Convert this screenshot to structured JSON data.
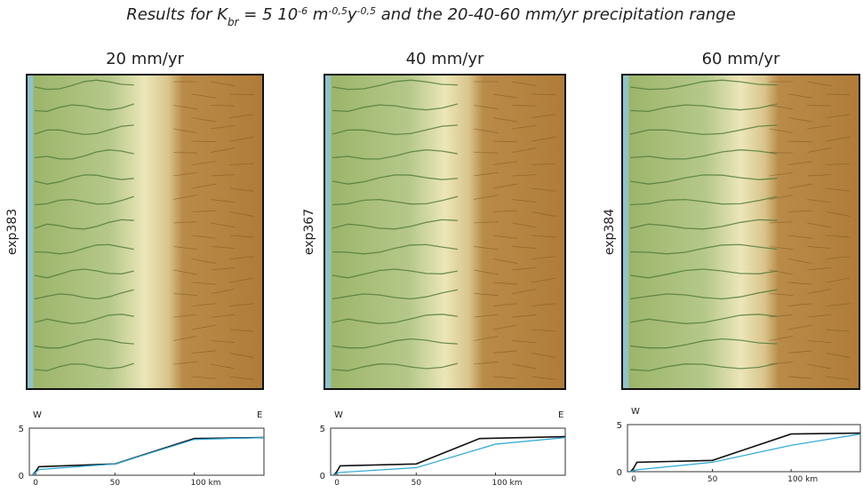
{
  "title": [
    {
      "text": "Results for K",
      "style": "normal"
    },
    {
      "text": "br",
      "style": "sub"
    },
    {
      "text": " = 5 10",
      "style": "normal"
    },
    {
      "text": "-6",
      "style": "super"
    },
    {
      "text": " m",
      "style": "normal"
    },
    {
      "text": "-0,5",
      "style": "super"
    },
    {
      "text": "y",
      "style": "normal"
    },
    {
      "text": "-0,5",
      "style": "super"
    },
    {
      "text": "  and the 20-40-60 mm/yr precipitation range",
      "style": "normal"
    }
  ],
  "chart_data": [
    {
      "type": "line",
      "title": "20 mm/yr",
      "ylabel": "exp383",
      "annotations": [
        "W",
        "E"
      ],
      "xlim": [
        -4,
        144
      ],
      "ylim": [
        0,
        5
      ],
      "xticks": [
        0,
        50,
        {
          "value": 100,
          "label": "100 km"
        }
      ],
      "yticks": [
        0,
        5
      ],
      "series": [
        {
          "color": "#111111",
          "x": [
            -2,
            0,
            2,
            50,
            100,
            144
          ],
          "values": [
            0,
            0.4,
            0.9,
            1.2,
            3.9,
            4.0
          ]
        },
        {
          "color": "#2aa7d6",
          "x": [
            -2,
            0,
            2,
            50,
            100,
            144
          ],
          "values": [
            0,
            0.3,
            0.6,
            1.2,
            3.8,
            4.0
          ]
        }
      ]
    },
    {
      "type": "line",
      "title": "40 mm/yr",
      "ylabel": "exp367",
      "annotations": [
        "W",
        "E"
      ],
      "xlim": [
        -4,
        144
      ],
      "ylim": [
        0,
        5
      ],
      "xticks": [
        0,
        50,
        {
          "value": 100,
          "label": "100 km"
        }
      ],
      "yticks": [
        0,
        5
      ],
      "series": [
        {
          "color": "#111111",
          "x": [
            -2,
            0,
            2,
            50,
            90,
            144
          ],
          "values": [
            0,
            0.4,
            1.0,
            1.2,
            3.9,
            4.1
          ]
        },
        {
          "color": "#2aa7d6",
          "x": [
            -2,
            0,
            2,
            50,
            100,
            144
          ],
          "values": [
            0,
            0.2,
            0.3,
            0.8,
            3.3,
            4.0
          ]
        }
      ]
    },
    {
      "type": "line",
      "title": "60 mm/yr",
      "ylabel": "exp384",
      "annotations": [
        "W"
      ],
      "xlim": [
        -4,
        144
      ],
      "ylim": [
        0,
        5
      ],
      "xticks": [
        0,
        50,
        {
          "value": 100,
          "label": "100 km"
        }
      ],
      "yticks": [
        0,
        5
      ],
      "series": [
        {
          "color": "#111111",
          "x": [
            -2,
            0,
            2,
            50,
            100,
            144
          ],
          "values": [
            0,
            0.4,
            1.0,
            1.2,
            4.0,
            4.1
          ]
        },
        {
          "color": "#2aa7d6",
          "x": [
            -2,
            0,
            2,
            50,
            100,
            144
          ],
          "values": [
            0,
            0.1,
            0.2,
            1.0,
            2.8,
            4.0
          ]
        }
      ]
    }
  ]
}
